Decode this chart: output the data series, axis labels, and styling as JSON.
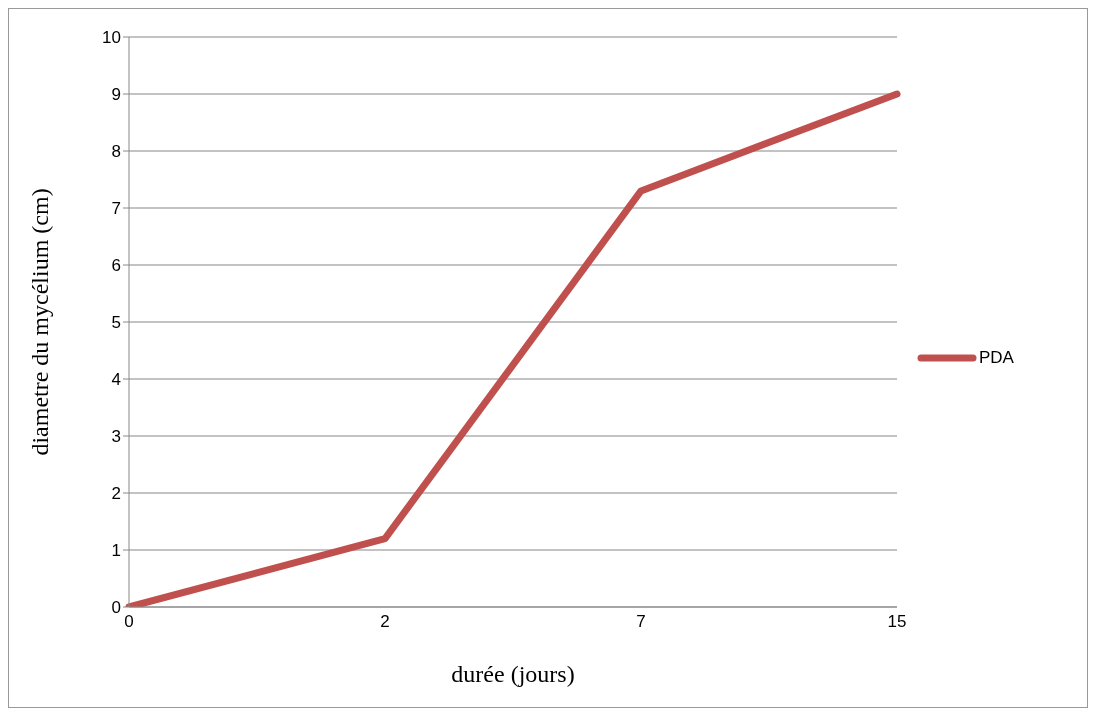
{
  "chart_data": {
    "type": "line",
    "xlabel": "durée (jours)",
    "ylabel": "diametre du mycélium (cm)",
    "categories": [
      "0",
      "2",
      "7",
      "15"
    ],
    "series": [
      {
        "name": "PDA",
        "color": "#c0504d",
        "values": [
          0,
          1.2,
          7.3,
          9.0
        ]
      }
    ],
    "ylim": [
      0,
      10
    ],
    "yticks": [
      0,
      1,
      2,
      3,
      4,
      5,
      6,
      7,
      8,
      9,
      10
    ],
    "grid": "y",
    "legend": "right",
    "marker": "none",
    "line_style": "solid"
  }
}
